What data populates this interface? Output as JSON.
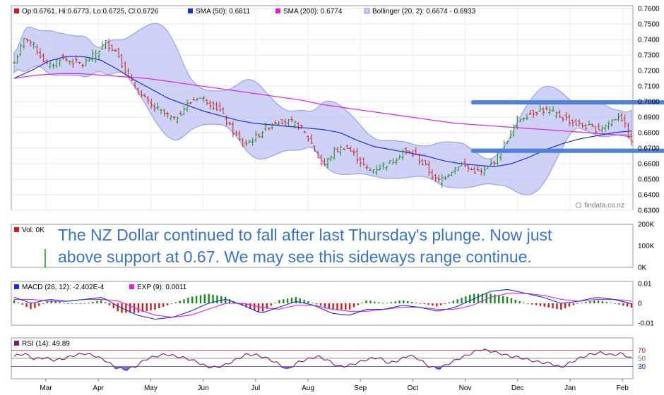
{
  "annotation": {
    "line1": "The NZ Dollar continued to fall after last Thursday's plunge. Now just",
    "line2": "above support at 0.67. We may see this sideways range continue."
  },
  "watermark": "findata.co.nz",
  "colors": {
    "up_candle": "#1a8a1a",
    "down_candle": "#c82020",
    "sma50": "#1a2fd0",
    "sma200": "#e020e0",
    "bollinger_fill": "#c6caf6",
    "bollinger_edge": "#8f96e8",
    "trendline": "#4f82d6",
    "rsi_line": "#7a1a6a",
    "macd_line": "#1a2fd0",
    "signal_line": "#e020e0",
    "hist_up": "#1a8a1a",
    "hist_down": "#c82020",
    "rsi_overbought_fill": "#f07a7a",
    "rsi_oversold_fill": "#6f74e6",
    "volume_bar": "#1a8a1a"
  },
  "chart_data": [
    {
      "id": "price",
      "type": "candlestick",
      "x_months": [
        "Mar",
        "Apr",
        "May",
        "Jun",
        "Jul",
        "Aug",
        "Sep",
        "Oct",
        "Nov",
        "Dec",
        "Jan",
        "Feb"
      ],
      "ylim": [
        0.63,
        0.76
      ],
      "y_ticks": [
        "0.7600",
        "0.7500",
        "0.7400",
        "0.7300",
        "0.7200",
        "0.7100",
        "0.7000",
        "0.6900",
        "0.6800",
        "0.6700",
        "0.6600",
        "0.6500",
        "0.6400",
        "0.6300"
      ],
      "legend": [
        {
          "name": "ohlc",
          "label": "Op:0.6761, Hi:0.6773, Lo:0.6725, Cl:0.6726",
          "color": "#c82020"
        },
        {
          "name": "sma50",
          "label": "SMA (50): 0.6811",
          "color": "#1a2fd0"
        },
        {
          "name": "sma200",
          "label": "SMA (200): 0.6774",
          "color": "#e020e0"
        },
        {
          "name": "bollinger",
          "label": "Bollinger (20, 2): 0.6674 - 0.6933",
          "color": "#c6caf6"
        }
      ],
      "last_ohlc": {
        "open": 0.6761,
        "high": 0.6773,
        "low": 0.6725,
        "close": 0.6726
      },
      "close_anchors": [
        0.725,
        0.742,
        0.733,
        0.722,
        0.728,
        0.726,
        0.724,
        0.73,
        0.738,
        0.732,
        0.715,
        0.705,
        0.697,
        0.693,
        0.688,
        0.697,
        0.703,
        0.7,
        0.694,
        0.682,
        0.672,
        0.676,
        0.683,
        0.688,
        0.687,
        0.684,
        0.673,
        0.658,
        0.668,
        0.671,
        0.664,
        0.655,
        0.658,
        0.661,
        0.668,
        0.666,
        0.658,
        0.648,
        0.654,
        0.66,
        0.656,
        0.654,
        0.662,
        0.674,
        0.688,
        0.692,
        0.695,
        0.693,
        0.69,
        0.686,
        0.684,
        0.682,
        0.686,
        0.692,
        0.6726
      ],
      "sma50_anchors": [
        0.715,
        0.72,
        0.726,
        0.729,
        0.729,
        0.727,
        0.721,
        0.714,
        0.708,
        0.702,
        0.698,
        0.694,
        0.691,
        0.688,
        0.686,
        0.685,
        0.684,
        0.683,
        0.682,
        0.68,
        0.675,
        0.671,
        0.669,
        0.667,
        0.665,
        0.662,
        0.66,
        0.659,
        0.658,
        0.66,
        0.664,
        0.669,
        0.673,
        0.676,
        0.678,
        0.68,
        0.6811
      ],
      "sma200_anchors": [
        0.715,
        0.717,
        0.718,
        0.718,
        0.717,
        0.716,
        0.715,
        0.713,
        0.711,
        0.709,
        0.707,
        0.705,
        0.703,
        0.701,
        0.698,
        0.696,
        0.694,
        0.692,
        0.69,
        0.688,
        0.686,
        0.685,
        0.684,
        0.683,
        0.682,
        0.681,
        0.68,
        0.679,
        0.6774
      ],
      "resistance_line": {
        "from_month": 8.15,
        "to_month": 11.95,
        "value": 0.6995
      },
      "support_line": {
        "from_month": 8.15,
        "to_month": 11.95,
        "value": 0.6683
      }
    },
    {
      "id": "volume",
      "type": "bar",
      "legend": "Vol: 0K",
      "y_ticks": [
        "200K",
        "100K",
        "0K"
      ],
      "ylim": [
        0,
        200
      ],
      "spike": {
        "month": 0.02,
        "value": 85
      }
    },
    {
      "id": "macd",
      "type": "line",
      "legend": [
        {
          "name": "macd",
          "label": "MACD (26, 12): -2.402E-4",
          "color": "#1a2fd0"
        },
        {
          "name": "exp",
          "label": "EXP (9): 0.0011",
          "color": "#e020e0"
        }
      ],
      "y_ticks": [
        "0.01",
        "0",
        "-0.01"
      ],
      "ylim": [
        -0.011,
        0.011
      ],
      "macd_anchors": [
        0.003,
        0.0,
        0.002,
        0.001,
        0.002,
        0.003,
        -0.002,
        -0.006,
        -0.008,
        -0.007,
        -0.004,
        0.0,
        0.002,
        -0.001,
        -0.005,
        -0.002,
        0.001,
        -0.001,
        -0.005,
        -0.006,
        -0.003,
        -0.003,
        -0.001,
        -0.002,
        -0.004,
        -0.002,
        0.002,
        0.006,
        0.007,
        0.005,
        0.003,
        0.0,
        0.001,
        0.003,
        0.002,
        -0.00024
      ],
      "signal_anchors": [
        0.002,
        0.002,
        0.001,
        0.001,
        0.002,
        0.002,
        0.001,
        -0.003,
        -0.006,
        -0.007,
        -0.006,
        -0.003,
        0.0,
        0.0,
        -0.002,
        -0.003,
        -0.001,
        -0.001,
        -0.003,
        -0.004,
        -0.004,
        -0.003,
        -0.002,
        -0.002,
        -0.003,
        -0.003,
        -0.001,
        0.003,
        0.005,
        0.005,
        0.004,
        0.002,
        0.001,
        0.002,
        0.002,
        0.0011
      ]
    },
    {
      "id": "rsi",
      "type": "line",
      "legend": "RSI (14): 49.89",
      "y_ticks": [
        "70",
        "50",
        "30"
      ],
      "levels": [
        70,
        50,
        30
      ],
      "ylim": [
        0,
        100
      ],
      "rsi_anchors": [
        55,
        62,
        48,
        52,
        45,
        50,
        58,
        62,
        56,
        45,
        28,
        22,
        30,
        48,
        55,
        60,
        55,
        50,
        42,
        30,
        28,
        35,
        48,
        60,
        58,
        50,
        38,
        22,
        40,
        48,
        55,
        45,
        30,
        32,
        40,
        48,
        52,
        38,
        45,
        58,
        48,
        30,
        25,
        38,
        50,
        60,
        72,
        68,
        62,
        55,
        52,
        45,
        40,
        38,
        28,
        40,
        52,
        60,
        64,
        58,
        62,
        49.89
      ]
    }
  ]
}
